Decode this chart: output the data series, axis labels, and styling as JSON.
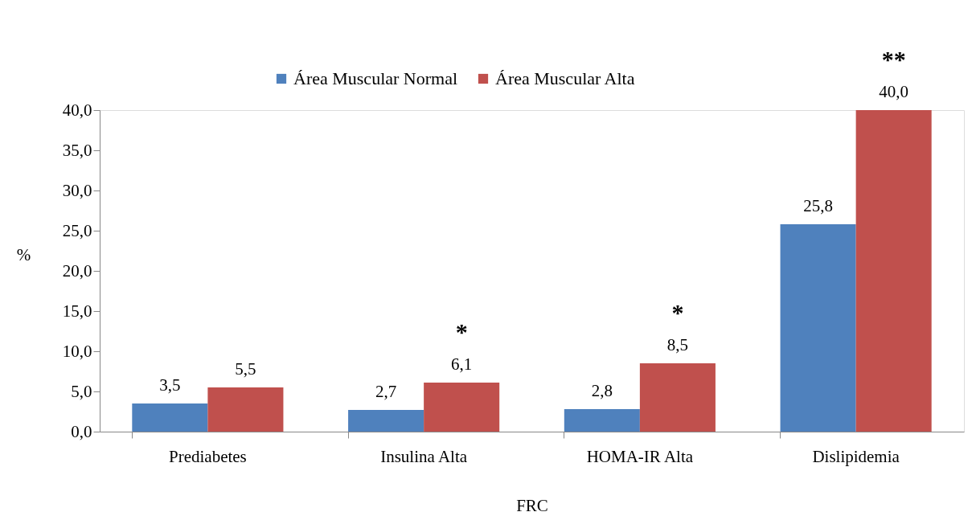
{
  "chart_data": {
    "type": "bar",
    "xlabel": "FRC",
    "ylabel": "%",
    "categories": [
      "Prediabetes",
      "Insulina Alta",
      "HOMA-IR Alta",
      "Dislipidemia"
    ],
    "series": [
      {
        "name": "Área Muscular Normal",
        "color": "#4f81bd",
        "values": [
          3.5,
          2.7,
          2.8,
          25.8
        ],
        "value_labels": [
          "3,5",
          "2,7",
          "2,8",
          "25,8"
        ]
      },
      {
        "name": "Área Muscular Alta",
        "color": "#c0504d",
        "values": [
          5.5,
          6.1,
          8.5,
          40.0
        ],
        "value_labels": [
          "5,5",
          "6,1",
          "8,5",
          "40,0"
        ]
      }
    ],
    "ylim": [
      0,
      40
    ],
    "yticks": [
      {
        "value": 0,
        "label": "0,0"
      },
      {
        "value": 5,
        "label": "5,0"
      },
      {
        "value": 10,
        "label": "10,0"
      },
      {
        "value": 15,
        "label": "15,0"
      },
      {
        "value": 20,
        "label": "20,0"
      },
      {
        "value": 25,
        "label": "25,0"
      },
      {
        "value": 30,
        "label": "30,0"
      },
      {
        "value": 35,
        "label": "35,0"
      },
      {
        "value": 40,
        "label": "40,0"
      }
    ],
    "annotations": [
      {
        "text": "*",
        "x": "Insulina Alta",
        "y": 6.1
      },
      {
        "text": "*",
        "x": "HOMA-IR Alta",
        "y": 8.5
      },
      {
        "text": "**",
        "x": "Dislipidemia",
        "y": 40.0
      }
    ],
    "legend": "top",
    "grid": false
  }
}
